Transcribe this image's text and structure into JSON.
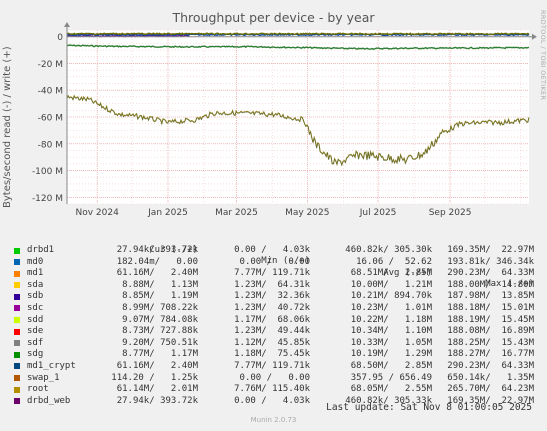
{
  "chart_data": {
    "type": "line",
    "title": "Throughput per device - by year",
    "ylabel": "Bytes/second read (-) / write (+)",
    "watermark": "RRDTOOL / TOBI OETIKER",
    "ylim": [
      -125,
      5
    ],
    "y_ticks": [
      0,
      -20,
      -40,
      -60,
      -80,
      -100,
      -120
    ],
    "y_tick_labels": [
      "0",
      "-20 M",
      "-40 M",
      "-60 M",
      "-80 M",
      "-100 M",
      "-120 M"
    ],
    "x_range": [
      "2024-10-06",
      "2025-11-08"
    ],
    "x_ticks": [
      {
        "date": "2024-11-01",
        "label": "Nov 2024"
      },
      {
        "date": "2025-01-01",
        "label": "Jan 2025"
      },
      {
        "date": "2025-03-01",
        "label": "Mar 2025"
      },
      {
        "date": "2025-05-01",
        "label": "May 2025"
      },
      {
        "date": "2025-07-01",
        "label": "Jul 2025"
      },
      {
        "date": "2025-09-01",
        "label": "Sep 2025"
      }
    ],
    "unit": "M bytes/second",
    "series": [
      {
        "name": "md1_read",
        "color": "#2e7d32",
        "points": [
          [
            "2024-10-06",
            -6.5
          ],
          [
            "2024-11-15",
            -7.2
          ],
          [
            "2025-01-15",
            -7.6
          ],
          [
            "2025-03-15",
            -7.5
          ],
          [
            "2025-05-01",
            -8.2
          ],
          [
            "2025-06-15",
            -9.0
          ],
          [
            "2025-08-01",
            -8.6
          ],
          [
            "2025-09-15",
            -8.5
          ],
          [
            "2025-11-08",
            -8.2
          ]
        ]
      },
      {
        "name": "root_read",
        "color": "#8d7f1e",
        "points": [
          [
            "2024-10-06",
            -45
          ],
          [
            "2024-10-25",
            -47
          ],
          [
            "2024-11-05",
            -52
          ],
          [
            "2024-11-20",
            -58
          ],
          [
            "2024-12-10",
            -60
          ],
          [
            "2025-01-01",
            -64
          ],
          [
            "2025-01-25",
            -62
          ],
          [
            "2025-02-10",
            -57
          ],
          [
            "2025-03-01",
            -57
          ],
          [
            "2025-04-01",
            -58
          ],
          [
            "2025-04-28",
            -62
          ],
          [
            "2025-05-08",
            -80
          ],
          [
            "2025-05-25",
            -95
          ],
          [
            "2025-06-15",
            -88
          ],
          [
            "2025-07-05",
            -90
          ],
          [
            "2025-07-25",
            -92
          ],
          [
            "2025-08-10",
            -87
          ],
          [
            "2025-08-25",
            -72
          ],
          [
            "2025-09-10",
            -65
          ],
          [
            "2025-10-01",
            -64
          ],
          [
            "2025-10-15",
            -64
          ],
          [
            "2025-11-08",
            -62
          ]
        ]
      },
      {
        "name": "drbd_web_write",
        "color": "#6a1b9a",
        "points": [
          [
            "2024-10-06",
            0.5
          ],
          [
            "2025-01-20",
            0.6
          ]
        ]
      },
      {
        "name": "md0_write",
        "color": "#0d47a1",
        "points": [
          [
            "2024-10-06",
            1.5
          ],
          [
            "2025-11-08",
            1.4
          ]
        ]
      },
      {
        "name": "root_write",
        "color": "#6d6d00",
        "points": [
          [
            "2024-10-06",
            2.2
          ],
          [
            "2025-11-08",
            2.1
          ]
        ]
      }
    ]
  },
  "legend": {
    "headers": {
      "cur": "Cur (-/+)",
      "min": "Min (-/+)",
      "avg": "Avg (-/+)",
      "max": "Max (-/+)"
    },
    "rows": [
      {
        "name": "drbd1",
        "color": "#00cc00",
        "cur": "27.94k/ 393.72k",
        "min": "0.00 /   4.03k",
        "avg": "460.82k/ 305.30k",
        "max": "169.35M/  22.97M"
      },
      {
        "name": "md0",
        "color": "#0066b3",
        "cur": "182.04m/   0.00",
        "min": "0.00 /   0.00",
        "avg": "16.06 /  52.62",
        "max": "193.81k/ 346.34k"
      },
      {
        "name": "md1",
        "color": "#ff8000",
        "cur": "61.16M/   2.40M",
        "min": "7.77M/ 119.71k",
        "avg": "68.51M/   2.85M",
        "max": "290.23M/  64.33M"
      },
      {
        "name": "sda",
        "color": "#ffcc00",
        "cur": "8.88M/   1.13M",
        "min": "1.23M/  64.31k",
        "avg": "10.00M/   1.21M",
        "max": "188.00M/  14.80M"
      },
      {
        "name": "sdb",
        "color": "#330099",
        "cur": "8.85M/   1.19M",
        "min": "1.23M/  32.36k",
        "avg": "10.21M/ 894.70k",
        "max": "187.98M/  13.85M"
      },
      {
        "name": "sdc",
        "color": "#990099",
        "cur": "8.99M/ 708.22k",
        "min": "1.23M/  40.72k",
        "avg": "10.23M/   1.01M",
        "max": "188.18M/  15.01M"
      },
      {
        "name": "sdd",
        "color": "#ccff00",
        "cur": "9.07M/ 784.08k",
        "min": "1.17M/  68.06k",
        "avg": "10.22M/   1.18M",
        "max": "188.19M/  15.45M"
      },
      {
        "name": "sde",
        "color": "#ff0000",
        "cur": "8.73M/ 727.88k",
        "min": "1.23M/  49.44k",
        "avg": "10.34M/   1.10M",
        "max": "188.08M/  16.89M"
      },
      {
        "name": "sdf",
        "color": "#808080",
        "cur": "9.20M/ 750.51k",
        "min": "1.12M/  45.85k",
        "avg": "10.33M/   1.05M",
        "max": "188.25M/  15.43M"
      },
      {
        "name": "sdg",
        "color": "#008f00",
        "cur": "8.77M/   1.17M",
        "min": "1.18M/  75.45k",
        "avg": "10.19M/   1.29M",
        "max": "188.27M/  16.77M"
      },
      {
        "name": "md1_crypt",
        "color": "#00487d",
        "cur": "61.16M/   2.40M",
        "min": "7.77M/ 119.71k",
        "avg": "68.50M/   2.85M",
        "max": "290.23M/  64.33M"
      },
      {
        "name": "swap_1",
        "color": "#b35a00",
        "cur": "114.20 /   1.25k",
        "min": "0.00 /   0.00",
        "avg": "357.95 / 656.49",
        "max": "650.14k/   1.35M"
      },
      {
        "name": "root",
        "color": "#b38f00",
        "cur": "61.14M/   2.01M",
        "min": "7.76M/ 115.40k",
        "avg": "68.05M/   2.55M",
        "max": "265.70M/  64.23M"
      },
      {
        "name": "drbd_web",
        "color": "#6b006b",
        "cur": "27.94k/ 393.72k",
        "min": "0.00 /   4.03k",
        "avg": "460.82k/ 305.33k",
        "max": "169.35M/  22.97M"
      }
    ]
  },
  "footer": {
    "last_update": "Last update: Sat Nov  8 01:00:05 2025",
    "version": "Munin 2.0.73"
  }
}
